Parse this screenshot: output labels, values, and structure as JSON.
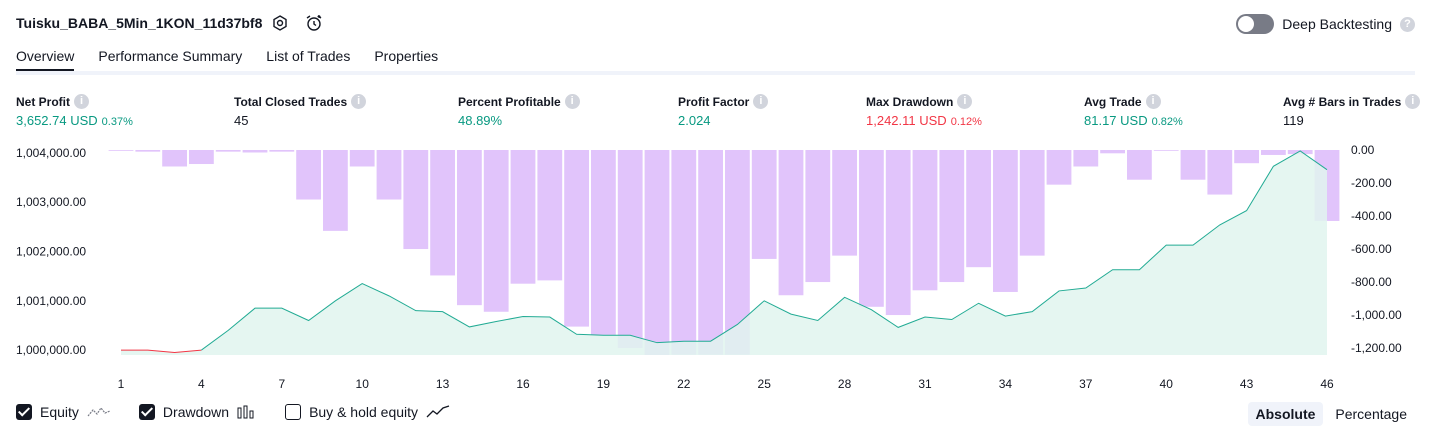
{
  "header": {
    "title": "Tuisku_BABA_5Min_1KON_11d37bf8",
    "deep_backtesting_label": "Deep Backtesting"
  },
  "tabs": [
    {
      "label": "Overview",
      "active": true
    },
    {
      "label": "Performance Summary",
      "active": false
    },
    {
      "label": "List of Trades",
      "active": false
    },
    {
      "label": "Properties",
      "active": false
    }
  ],
  "metrics": [
    {
      "label": "Net Profit",
      "value": "3,652.74 USD",
      "pct": "0.37%",
      "color": "green"
    },
    {
      "label": "Total Closed Trades",
      "value": "45",
      "pct": "",
      "color": "black"
    },
    {
      "label": "Percent Profitable",
      "value": "48.89%",
      "pct": "",
      "color": "green"
    },
    {
      "label": "Profit Factor",
      "value": "2.024",
      "pct": "",
      "color": "green"
    },
    {
      "label": "Max Drawdown",
      "value": "1,242.11 USD",
      "pct": "0.12%",
      "color": "red"
    },
    {
      "label": "Avg Trade",
      "value": "81.17 USD",
      "pct": "0.82%",
      "color": "green"
    },
    {
      "label": "Avg # Bars in Trades",
      "value": "119",
      "pct": "",
      "color": "black"
    }
  ],
  "legend": {
    "equity": "Equity",
    "drawdown": "Drawdown",
    "buy_hold": "Buy & hold equity"
  },
  "mode": {
    "absolute": "Absolute",
    "percentage": "Percentage"
  },
  "colors": {
    "green": "#089981",
    "red": "#f23645",
    "drawdown_bar": "#e1c4fb",
    "equity_line": "#22ab94",
    "equity_fill": "#e0f4ee",
    "dd_line": "#9598a1"
  },
  "chart_data": {
    "type": "line",
    "x_ticks": [
      1,
      4,
      7,
      10,
      13,
      16,
      19,
      22,
      25,
      28,
      31,
      34,
      37,
      40,
      43,
      46
    ],
    "left_axis": {
      "ticks": [
        "1,004,000.00",
        "1,003,000.00",
        "1,002,000.00",
        "1,001,000.00",
        "1,000,000.00"
      ],
      "tick_values": [
        1004000,
        1003000,
        1002000,
        1001000,
        1000000
      ],
      "ylim": [
        999900,
        1004060
      ]
    },
    "right_axis": {
      "ticks": [
        "0.00",
        "-200.00",
        "-400.00",
        "-600.00",
        "-800.00",
        "-1,000.00",
        "-1,200.00"
      ],
      "tick_values": [
        0,
        -200,
        -400,
        -600,
        -800,
        -1000,
        -1200
      ],
      "ylim": [
        -1242,
        0
      ]
    },
    "equity": [
      1000000,
      1000000,
      999950,
      1000000,
      1000400,
      1000850,
      1000850,
      1000600,
      1001000,
      1001350,
      1001100,
      1000800,
      1000780,
      1000470,
      1000580,
      1000680,
      1000670,
      1000320,
      1000300,
      1000300,
      1000150,
      1000180,
      1000180,
      1000520,
      1001000,
      1000730,
      1000600,
      1001070,
      1000820,
      1000460,
      1000670,
      1000620,
      1000950,
      1000690,
      1000780,
      1001200,
      1001260,
      1001630,
      1001630,
      1002130,
      1002130,
      1002540,
      1002830,
      1003730,
      1004040,
      1003660
    ],
    "drawdown": [
      0,
      -10,
      -100,
      -85,
      -10,
      -15,
      -10,
      -300,
      -490,
      -100,
      -300,
      -600,
      -760,
      -940,
      -980,
      -810,
      -790,
      -1070,
      -1120,
      -1200,
      -1242,
      -1240,
      -1240,
      -1240,
      -660,
      -880,
      -800,
      -640,
      -950,
      -1000,
      -850,
      -800,
      -710,
      -860,
      -640,
      -210,
      -100,
      -20,
      -180,
      0,
      -180,
      -270,
      -80,
      -30,
      -25,
      -430
    ],
    "equity_color_segments": {
      "red_until_index": 3
    }
  }
}
